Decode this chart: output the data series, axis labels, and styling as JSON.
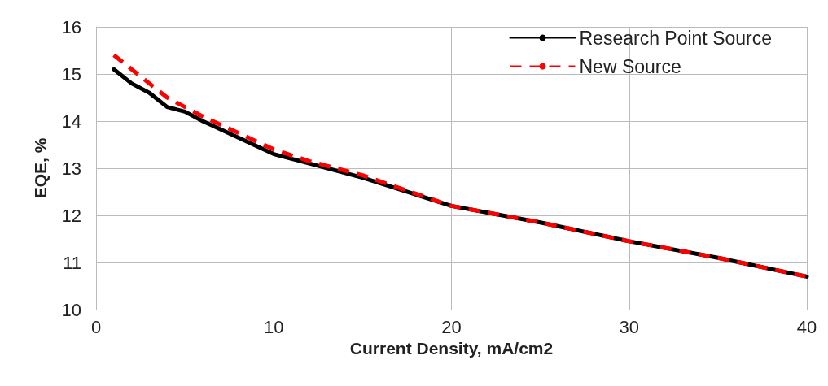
{
  "chart_data": {
    "type": "line",
    "xlabel": "Current Density, mA/cm2",
    "ylabel": "EQE, %",
    "xlim": [
      0,
      40
    ],
    "xticks": [
      0,
      10,
      20,
      30,
      40
    ],
    "ylim": [
      10,
      16
    ],
    "yticks": [
      10,
      11,
      12,
      13,
      14,
      15,
      16
    ],
    "grid": true,
    "legend": "top right",
    "marker": "none",
    "series": [
      {
        "name": "Research Point Source",
        "color": "#000000",
        "line_style": "solid",
        "x": [
          1,
          2,
          3,
          4,
          5,
          6,
          8,
          10,
          12,
          15,
          20,
          25,
          30,
          35,
          40
        ],
        "values": [
          15.1,
          14.8,
          14.6,
          14.3,
          14.2,
          14.0,
          13.65,
          13.3,
          13.1,
          12.8,
          12.2,
          11.85,
          11.45,
          11.1,
          10.7
        ]
      },
      {
        "name": "New Source",
        "color": "#ff0000",
        "line_style": "dashed",
        "x": [
          1,
          2,
          3,
          4,
          5,
          6,
          8,
          10,
          12,
          15,
          20,
          25,
          30,
          35,
          40
        ],
        "values": [
          15.4,
          15.1,
          14.8,
          14.5,
          14.3,
          14.1,
          13.75,
          13.4,
          13.15,
          12.85,
          12.2,
          11.85,
          11.45,
          11.1,
          10.7
        ]
      }
    ]
  }
}
